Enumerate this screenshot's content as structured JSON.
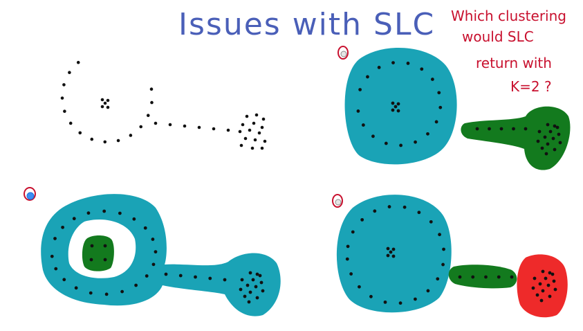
{
  "title": "Issues with SLC",
  "question": {
    "lines": [
      "Which clustering",
      "would SLC",
      "return with",
      "K=2 ?"
    ]
  },
  "colors": {
    "ink": "#111111",
    "cyan": "#1aa3b6",
    "green": "#137a1e",
    "red": "#ee2a2a",
    "title": "#4a5fb8",
    "question": "#c8102e",
    "radio_selected": "#3a8ef5"
  },
  "options": [
    {
      "id": "option-a",
      "description": "Ring cluster and tail/blob cluster",
      "selected": false
    },
    {
      "id": "option-b",
      "description": "Ring plus tail as one cluster, center as other",
      "selected": true
    },
    {
      "id": "option-c",
      "description": "Ring cluster, tail cluster, blob cluster",
      "selected": false
    }
  ],
  "icons": {
    "radio": "radio-button-icon"
  }
}
